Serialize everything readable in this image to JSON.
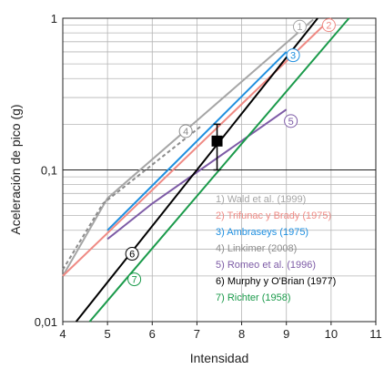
{
  "chart_data": {
    "type": "line",
    "title": "",
    "xlabel": "Intensidad",
    "ylabel": "Aceleración de pico (g)",
    "xlim": [
      4,
      11
    ],
    "ylim": [
      0.01,
      1
    ],
    "yscale": "log",
    "x_ticks": [
      "4",
      "5",
      "6",
      "7",
      "8",
      "9",
      "10",
      "11"
    ],
    "y_ticks": [
      "0,01",
      "0,1",
      "1"
    ],
    "grid": true,
    "legend_placement": "lower-right",
    "series": [
      {
        "name": "1) Wald et al. (1999)",
        "color": "#a6a6a6",
        "label_mark": "1",
        "dash": false,
        "x": [
          4.0,
          5.0,
          9.6
        ],
        "y": [
          0.02,
          0.065,
          0.98
        ]
      },
      {
        "name": "2) Trifunac y Brady (1975)",
        "color": "#ef8a84",
        "label_mark": "2",
        "dash": false,
        "x": [
          4.0,
          10.0
        ],
        "y": [
          0.02,
          1.0
        ]
      },
      {
        "name": "3) Ambraseys (1975)",
        "color": "#1e8fe0",
        "label_mark": "3",
        "dash": false,
        "x": [
          5.0,
          9.0
        ],
        "y": [
          0.04,
          0.6
        ]
      },
      {
        "name": "4) Linkimer (2008)",
        "color": "#8c8c8c",
        "label_mark": "4",
        "dash": true,
        "x": [
          4.0,
          4.9,
          7.1
        ],
        "y": [
          0.022,
          0.06,
          0.195
        ]
      },
      {
        "name": "5) Romeo et al. (1996)",
        "color": "#7d5ba6",
        "label_mark": "5",
        "dash": false,
        "x": [
          5.0,
          6.0,
          9.0
        ],
        "y": [
          0.035,
          0.06,
          0.25
        ]
      },
      {
        "name": "6) Murphy y O'Brian (1977)",
        "color": "#000000",
        "label_mark": "6",
        "dash": false,
        "x": [
          4.3,
          9.7
        ],
        "y": [
          0.01,
          1.0
        ]
      },
      {
        "name": "7) Richter (1958)",
        "color": "#1a9a4a",
        "label_mark": "7",
        "dash": false,
        "x": [
          4.6,
          10.4
        ],
        "y": [
          0.01,
          1.0
        ]
      }
    ],
    "error_marker": {
      "x": 7.45,
      "y": 0.155,
      "y_low": 0.1,
      "y_high": 0.2
    }
  }
}
